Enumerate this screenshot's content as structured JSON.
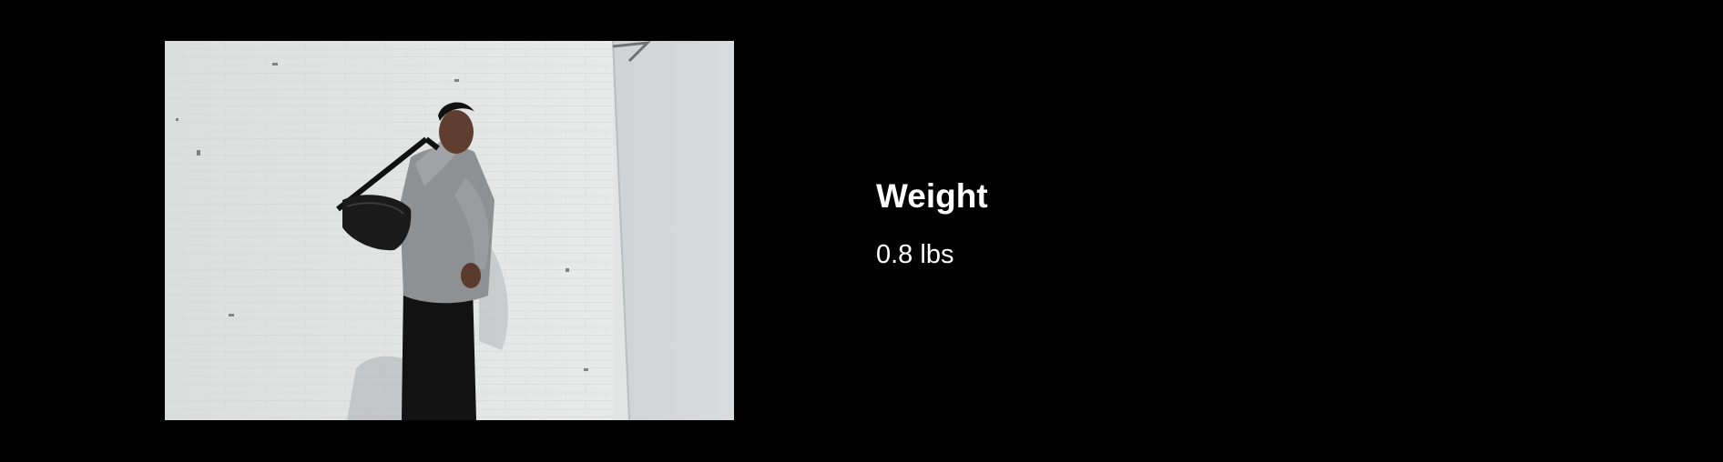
{
  "spec": {
    "label": "Weight",
    "value": "0.8 lbs"
  },
  "photo": {
    "subject": "person-with-sling-bag-photo"
  },
  "colors": {
    "background": "#000000",
    "text": "#ffffff",
    "wall": "#e3e5e5"
  }
}
